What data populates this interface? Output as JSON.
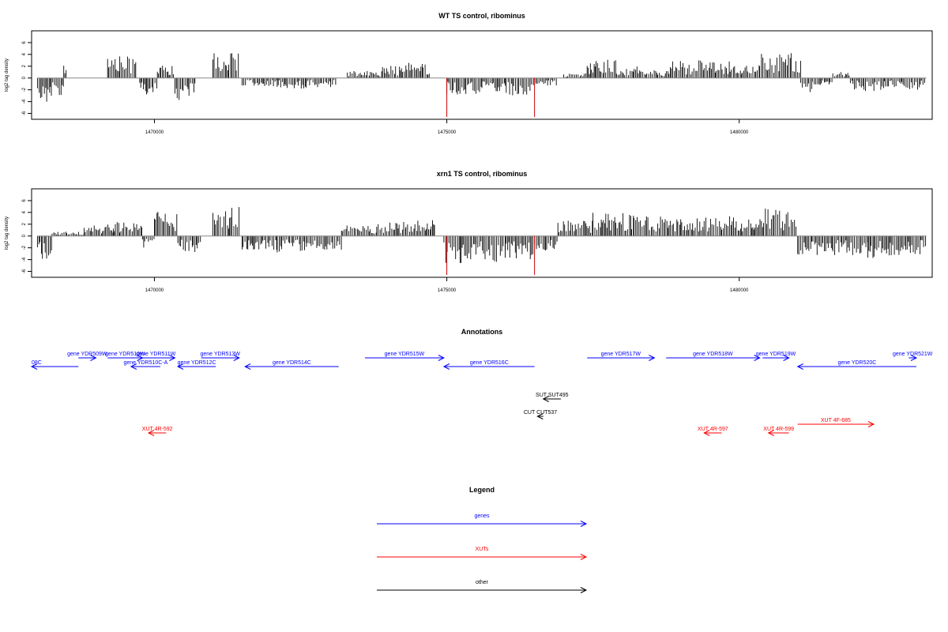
{
  "colors": {
    "genes": "#0000ff",
    "xuts": "#ff0000",
    "other": "#000000",
    "peak": "#cc0000"
  },
  "chart_data": [
    {
      "type": "bar",
      "title": "WT TS control, ribominus",
      "ylabel": "log2 tag density",
      "xlim": [
        1467900,
        1483300
      ],
      "ylim": [
        -7,
        8
      ],
      "yticks": [
        -6,
        -4,
        -2,
        0,
        2,
        4,
        6
      ],
      "xticks": [
        1470000,
        1475000,
        1480000
      ],
      "xtick_labels": [
        "1470000",
        "1475000",
        "1480000"
      ],
      "markers": [
        1475000,
        1476500
      ],
      "segments": [
        {
          "x0": 1468000,
          "x1": 1468220,
          "y": -4.4
        },
        {
          "x0": 1468220,
          "x1": 1468450,
          "y": -3.6
        },
        {
          "x0": 1468450,
          "x1": 1468500,
          "y": 2.8
        },
        {
          "x0": 1469200,
          "x1": 1469700,
          "y": 3.7
        },
        {
          "x0": 1469750,
          "x1": 1470050,
          "y": -2.8
        },
        {
          "x0": 1470050,
          "x1": 1470350,
          "y": 2.2
        },
        {
          "x0": 1470350,
          "x1": 1470700,
          "y": -3.8
        },
        {
          "x0": 1471000,
          "x1": 1471450,
          "y": 4.2
        },
        {
          "x0": 1471500,
          "x1": 1472100,
          "y": -1.4
        },
        {
          "x0": 1472100,
          "x1": 1472600,
          "y": -1.8
        },
        {
          "x0": 1472600,
          "x1": 1473100,
          "y": -1.6
        },
        {
          "x0": 1473300,
          "x1": 1473900,
          "y": 1.2
        },
        {
          "x0": 1473900,
          "x1": 1474300,
          "y": 2.1
        },
        {
          "x0": 1474300,
          "x1": 1474700,
          "y": 2.6
        },
        {
          "x0": 1475000,
          "x1": 1475600,
          "y": -3.0
        },
        {
          "x0": 1475600,
          "x1": 1476000,
          "y": -2.6
        },
        {
          "x0": 1476000,
          "x1": 1476500,
          "y": -3.0
        },
        {
          "x0": 1476500,
          "x1": 1476900,
          "y": -1.3
        },
        {
          "x0": 1477000,
          "x1": 1477400,
          "y": 0.8
        },
        {
          "x0": 1477400,
          "x1": 1477900,
          "y": 3.2
        },
        {
          "x0": 1477900,
          "x1": 1478300,
          "y": 2.0
        },
        {
          "x0": 1478300,
          "x1": 1478800,
          "y": 1.4
        },
        {
          "x0": 1478800,
          "x1": 1479400,
          "y": 3.0
        },
        {
          "x0": 1479400,
          "x1": 1480050,
          "y": 2.8
        },
        {
          "x0": 1480050,
          "x1": 1480350,
          "y": 2.2
        },
        {
          "x0": 1480350,
          "x1": 1481050,
          "y": 4.4
        },
        {
          "x0": 1481050,
          "x1": 1481250,
          "y": -2.4
        },
        {
          "x0": 1481250,
          "x1": 1481600,
          "y": -1.2
        },
        {
          "x0": 1481600,
          "x1": 1481900,
          "y": 1.0
        },
        {
          "x0": 1481900,
          "x1": 1482500,
          "y": -2.2
        },
        {
          "x0": 1482500,
          "x1": 1482800,
          "y": -1.6
        },
        {
          "x0": 1482800,
          "x1": 1483200,
          "y": -2.0
        }
      ]
    },
    {
      "type": "bar",
      "title": "xrn1 TS control, ribominus",
      "ylabel": "log2 tag density",
      "xlim": [
        1467900,
        1483300
      ],
      "ylim": [
        -7,
        8
      ],
      "yticks": [
        -6,
        -4,
        -2,
        0,
        2,
        4,
        6
      ],
      "xticks": [
        1470000,
        1475000,
        1480000
      ],
      "xtick_labels": [
        "1470000",
        "1475000",
        "1480000"
      ],
      "markers": [
        1475000,
        1476500
      ],
      "segments": [
        {
          "x0": 1468000,
          "x1": 1468250,
          "y": -4.6
        },
        {
          "x0": 1468250,
          "x1": 1468800,
          "y": 0.8
        },
        {
          "x0": 1468800,
          "x1": 1469300,
          "y": 2.0
        },
        {
          "x0": 1469300,
          "x1": 1469800,
          "y": 2.6
        },
        {
          "x0": 1469800,
          "x1": 1470000,
          "y": -2.0
        },
        {
          "x0": 1470000,
          "x1": 1470400,
          "y": 4.2
        },
        {
          "x0": 1470400,
          "x1": 1470800,
          "y": -3.2
        },
        {
          "x0": 1471000,
          "x1": 1471450,
          "y": 5.8
        },
        {
          "x0": 1471500,
          "x1": 1472100,
          "y": -2.4
        },
        {
          "x0": 1472100,
          "x1": 1472600,
          "y": -2.8
        },
        {
          "x0": 1472600,
          "x1": 1473200,
          "y": -2.6
        },
        {
          "x0": 1473200,
          "x1": 1473800,
          "y": 1.8
        },
        {
          "x0": 1473800,
          "x1": 1474300,
          "y": 2.4
        },
        {
          "x0": 1474300,
          "x1": 1474800,
          "y": 2.8
        },
        {
          "x0": 1474950,
          "x1": 1475500,
          "y": -4.6
        },
        {
          "x0": 1475500,
          "x1": 1476000,
          "y": -4.4
        },
        {
          "x0": 1476000,
          "x1": 1476500,
          "y": -4.2
        },
        {
          "x0": 1476500,
          "x1": 1476900,
          "y": -2.6
        },
        {
          "x0": 1476900,
          "x1": 1477500,
          "y": 2.6
        },
        {
          "x0": 1477500,
          "x1": 1478200,
          "y": 4.0
        },
        {
          "x0": 1478200,
          "x1": 1478800,
          "y": 3.6
        },
        {
          "x0": 1478800,
          "x1": 1479400,
          "y": 3.0
        },
        {
          "x0": 1479400,
          "x1": 1480000,
          "y": 3.6
        },
        {
          "x0": 1480000,
          "x1": 1480400,
          "y": 3.0
        },
        {
          "x0": 1480400,
          "x1": 1481000,
          "y": 4.8
        },
        {
          "x0": 1481000,
          "x1": 1481600,
          "y": -3.4
        },
        {
          "x0": 1481600,
          "x1": 1482200,
          "y": -3.6
        },
        {
          "x0": 1482200,
          "x1": 1482800,
          "y": -3.8
        },
        {
          "x0": 1482800,
          "x1": 1483200,
          "y": -3.2
        }
      ]
    }
  ],
  "annotations": {
    "title": "Annotations",
    "xlim": [
      1467900,
      1483300
    ],
    "features": [
      {
        "label": "08C",
        "x0": 1467900,
        "x1": 1468700,
        "dir": "left",
        "row": 2,
        "type": "genes"
      },
      {
        "label": "gene YDR509W",
        "x0": 1468700,
        "x1": 1469000,
        "dir": "right",
        "row": 1,
        "type": "genes"
      },
      {
        "label": "gene YDR510W",
        "x0": 1469200,
        "x1": 1469800,
        "dir": "right",
        "row": 1,
        "type": "genes"
      },
      {
        "label": "gene YDR510C-A",
        "x0": 1469600,
        "x1": 1470100,
        "dir": "left",
        "row": 2,
        "type": "genes"
      },
      {
        "label": "gene YDR511W",
        "x0": 1469700,
        "x1": 1470350,
        "dir": "right",
        "row": 1,
        "type": "genes"
      },
      {
        "label": "gene YDR512C",
        "x0": 1470400,
        "x1": 1471050,
        "dir": "left",
        "row": 2,
        "type": "genes"
      },
      {
        "label": "gene YDR513W",
        "x0": 1470800,
        "x1": 1471450,
        "dir": "right",
        "row": 1,
        "type": "genes"
      },
      {
        "label": "gene YDR514C",
        "x0": 1471550,
        "x1": 1473150,
        "dir": "left",
        "row": 2,
        "type": "genes"
      },
      {
        "label": "gene YDR515W",
        "x0": 1473600,
        "x1": 1474950,
        "dir": "right",
        "row": 1,
        "type": "genes"
      },
      {
        "label": "gene YDR516C",
        "x0": 1474950,
        "x1": 1476500,
        "dir": "left",
        "row": 2,
        "type": "genes"
      },
      {
        "label": "gene YDR517W",
        "x0": 1477400,
        "x1": 1478550,
        "dir": "right",
        "row": 1,
        "type": "genes"
      },
      {
        "label": "gene YDR518W",
        "x0": 1478750,
        "x1": 1480350,
        "dir": "right",
        "row": 1,
        "type": "genes"
      },
      {
        "label": "gene YDR519W",
        "x0": 1480400,
        "x1": 1480850,
        "dir": "right",
        "row": 1,
        "type": "genes"
      },
      {
        "label": "gene YDR520C",
        "x0": 1481000,
        "x1": 1483350,
        "dir": "left",
        "row": 2,
        "type": "genes"
      },
      {
        "label": "gene YDR521W",
        "x0": 1482900,
        "x1": 1483350,
        "dir": "right",
        "row": 1,
        "type": "genes"
      },
      {
        "label": "SUT SUT495",
        "x0": 1476650,
        "x1": 1476950,
        "dir": "left",
        "row": 3,
        "type": "other"
      },
      {
        "label": "CUT CUT537",
        "x0": 1476550,
        "x1": 1476650,
        "dir": "left",
        "row": 4,
        "type": "other"
      },
      {
        "label": "XUT 4R-592",
        "x0": 1469900,
        "x1": 1470200,
        "dir": "left",
        "row": 5,
        "type": "xuts"
      },
      {
        "label": "XUT 4R-597",
        "x0": 1479400,
        "x1": 1479700,
        "dir": "left",
        "row": 5,
        "type": "xuts"
      },
      {
        "label": "XUT 4R-599",
        "x0": 1480500,
        "x1": 1480850,
        "dir": "left",
        "row": 5,
        "type": "xuts"
      },
      {
        "label": "XUT 4F-685",
        "x0": 1481000,
        "x1": 1482300,
        "dir": "right",
        "row": 4.5,
        "type": "xuts"
      }
    ]
  },
  "legend": {
    "title": "Legend",
    "items": [
      {
        "label": "genes",
        "type": "genes"
      },
      {
        "label": "XUTs",
        "type": "xuts"
      },
      {
        "label": "other",
        "type": "other"
      }
    ]
  }
}
